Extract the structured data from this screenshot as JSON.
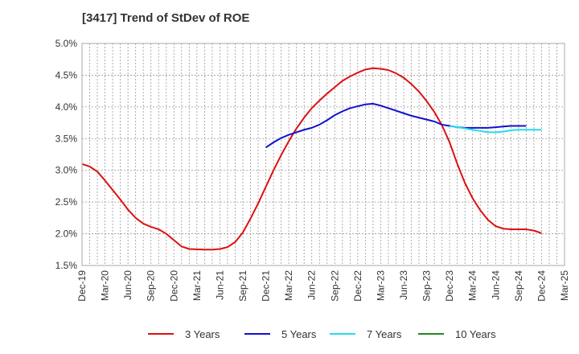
{
  "chart_data": {
    "type": "line",
    "title": "[3417]  Trend of StDev of ROE",
    "xlabel": "",
    "ylabel": "",
    "ylim": [
      1.5,
      5.0
    ],
    "y_ticks": [
      "1.5%",
      "2.0%",
      "2.5%",
      "3.0%",
      "3.5%",
      "4.0%",
      "4.5%",
      "5.0%"
    ],
    "x_ticks": [
      "Dec-19",
      "Mar-20",
      "Jun-20",
      "Sep-20",
      "Dec-20",
      "Mar-21",
      "Jun-21",
      "Sep-21",
      "Dec-21",
      "Mar-22",
      "Jun-22",
      "Sep-22",
      "Dec-22",
      "Mar-23",
      "Jun-23",
      "Sep-23",
      "Dec-23",
      "Mar-24",
      "Jun-24",
      "Sep-24",
      "Dec-24",
      "Mar-25"
    ],
    "grid": true,
    "legend_position": "bottom",
    "series": [
      {
        "name": "3 Years",
        "color": "#dd1111",
        "start_index": 0,
        "values": [
          3.1,
          3.06,
          2.98,
          2.84,
          2.69,
          2.54,
          2.38,
          2.25,
          2.16,
          2.11,
          2.07,
          2.0,
          1.9,
          1.8,
          1.76,
          1.755,
          1.75,
          1.75,
          1.76,
          1.79,
          1.87,
          2.02,
          2.24,
          2.48,
          2.74,
          3.0,
          3.24,
          3.46,
          3.66,
          3.83,
          3.98,
          4.1,
          4.21,
          4.31,
          4.41,
          4.48,
          4.54,
          4.59,
          4.61,
          4.6,
          4.58,
          4.53,
          4.46,
          4.36,
          4.24,
          4.09,
          3.92,
          3.71,
          3.44,
          3.1,
          2.8,
          2.56,
          2.37,
          2.22,
          2.12,
          2.08,
          2.07,
          2.07,
          2.07,
          2.05,
          2.01
        ]
      },
      {
        "name": "5 Years",
        "color": "#1111cc",
        "start_index": 24,
        "values": [
          3.36,
          3.44,
          3.51,
          3.56,
          3.6,
          3.64,
          3.67,
          3.72,
          3.79,
          3.87,
          3.93,
          3.98,
          4.01,
          4.04,
          4.05,
          4.02,
          3.98,
          3.94,
          3.9,
          3.86,
          3.83,
          3.8,
          3.77,
          3.72,
          3.7,
          3.68,
          3.67,
          3.67,
          3.67,
          3.67,
          3.68,
          3.69,
          3.7,
          3.7,
          3.7
        ]
      },
      {
        "name": "7 Years",
        "color": "#22ddee",
        "start_index": 48,
        "values": [
          3.7,
          3.68,
          3.66,
          3.64,
          3.62,
          3.6,
          3.6,
          3.61,
          3.63,
          3.64,
          3.64,
          3.64,
          3.64
        ]
      },
      {
        "name": "10 Years",
        "color": "#228822",
        "start_index": 0,
        "values": []
      }
    ]
  }
}
